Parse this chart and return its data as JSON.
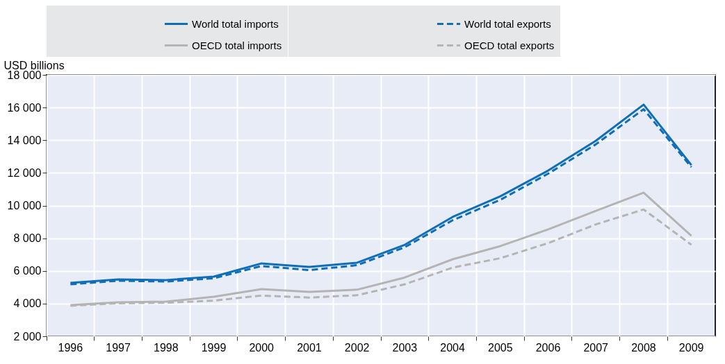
{
  "chart_data": {
    "type": "line",
    "ylabel": "USD billions",
    "categories": [
      "1996",
      "1997",
      "1998",
      "1999",
      "2000",
      "2001",
      "2002",
      "2003",
      "2004",
      "2005",
      "2006",
      "2007",
      "2008",
      "2009"
    ],
    "series": [
      {
        "name": "World total imports",
        "color": "#0e6eb8",
        "line_style": "solid",
        "values": [
          5270,
          5480,
          5440,
          5650,
          6460,
          6240,
          6500,
          7600,
          9300,
          10570,
          12140,
          13970,
          16180,
          12480
        ]
      },
      {
        "name": "World total exports",
        "color": "#0e6eb8",
        "line_style": "dashed",
        "values": [
          5180,
          5400,
          5350,
          5550,
          6300,
          6050,
          6350,
          7450,
          9100,
          10350,
          11950,
          13750,
          15900,
          12350
        ]
      },
      {
        "name": "OECD total imports",
        "color": "#b4b4b4",
        "line_style": "solid",
        "values": [
          3910,
          4080,
          4120,
          4420,
          4890,
          4720,
          4850,
          5600,
          6710,
          7520,
          8540,
          9680,
          10790,
          8150
        ]
      },
      {
        "name": "OECD total exports",
        "color": "#b4b4b4",
        "line_style": "dashed",
        "values": [
          3870,
          4020,
          4050,
          4180,
          4490,
          4370,
          4510,
          5180,
          6200,
          6780,
          7700,
          8850,
          9760,
          7600
        ]
      }
    ],
    "ylim": [
      2000,
      18000
    ],
    "yticks": [
      2000,
      4000,
      6000,
      8000,
      10000,
      12000,
      14000,
      16000,
      18000
    ],
    "grid": true,
    "legend": "top",
    "marker": "none"
  }
}
